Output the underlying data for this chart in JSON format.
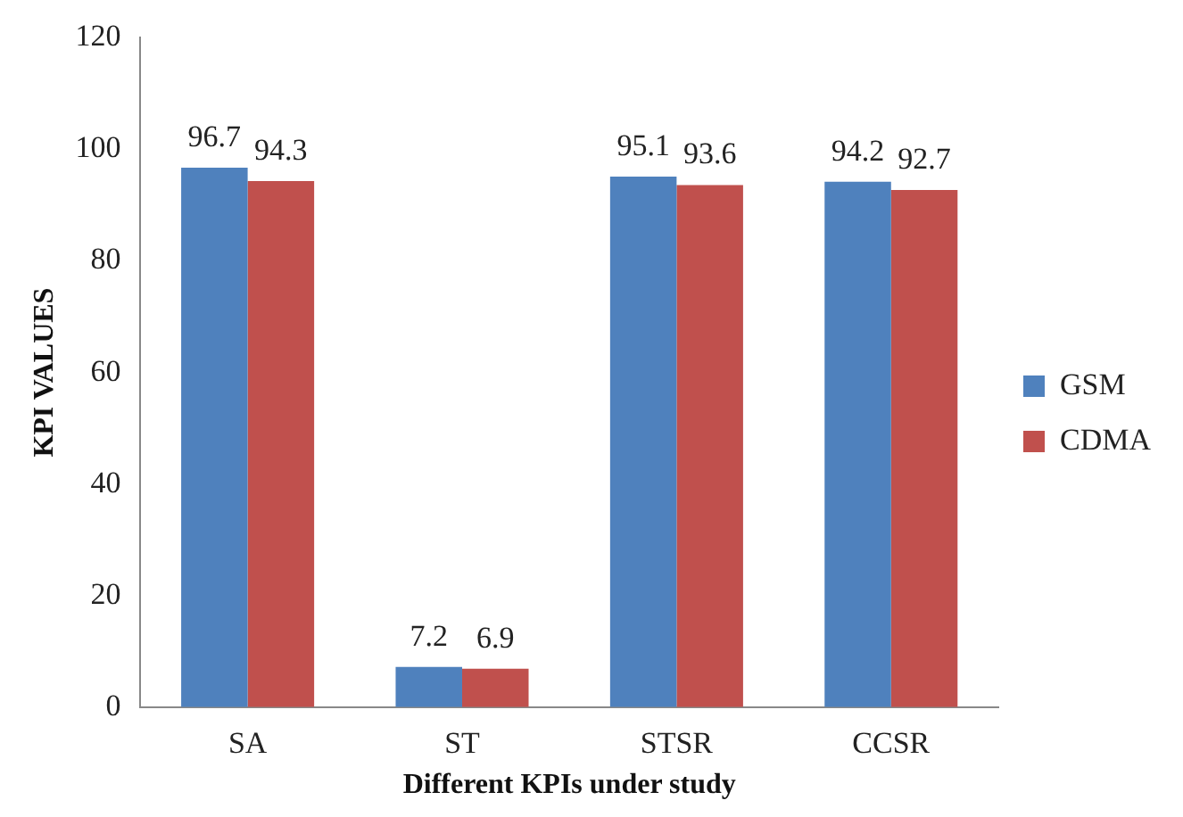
{
  "chart_data": {
    "type": "bar",
    "xlabel": "Different KPIs under study",
    "ylabel": "KPI VALUES",
    "categories": [
      "SA",
      "ST",
      "STSR",
      "CCSR"
    ],
    "series": [
      {
        "name": "GSM",
        "color": "#4f81bd",
        "values": [
          96.7,
          7.2,
          95.1,
          94.2
        ]
      },
      {
        "name": "CDMA",
        "color": "#c0504d",
        "values": [
          94.3,
          6.9,
          93.6,
          92.7
        ]
      }
    ],
    "ylim": [
      0,
      120
    ],
    "yticks": [
      0,
      20,
      40,
      60,
      80,
      100,
      120
    ],
    "grid": false,
    "legend": "right",
    "data_labels": true
  }
}
